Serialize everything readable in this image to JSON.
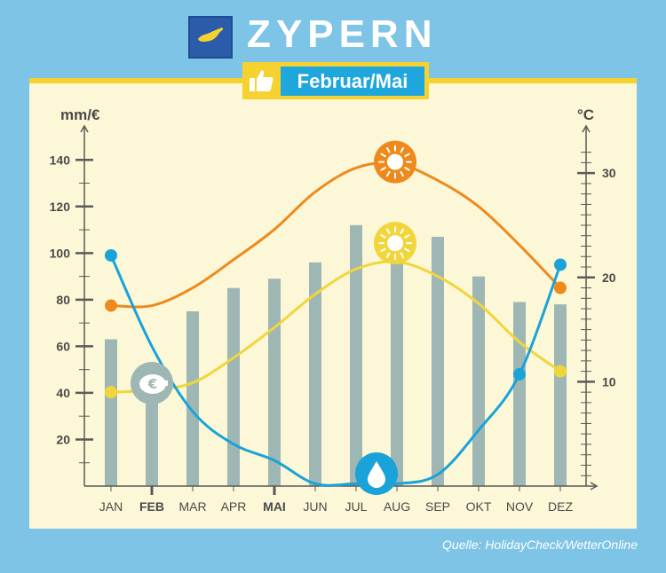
{
  "header": {
    "title": "ZYPERN",
    "best_months": "Februar/Mai",
    "colors": {
      "background": "#7ec4e6",
      "panel": "#fbf7d7",
      "accent": "#f5d230",
      "badge": "#1fa6dc"
    },
    "icons": [
      "cyprus-flag-icon",
      "thumbs-up-icon"
    ]
  },
  "source": "Quelle: HolidayCheck/WetterOnline",
  "chart_data": {
    "type": "bar",
    "categories": [
      "JAN",
      "FEB",
      "MAR",
      "APR",
      "MAI",
      "JUN",
      "JUL",
      "AUG",
      "SEP",
      "OKT",
      "NOV",
      "DEZ"
    ],
    "highlighted": [
      "FEB",
      "MAI"
    ],
    "left_axis": {
      "label": "mm/€",
      "ylim": [
        0,
        150
      ],
      "ticks": [
        20,
        40,
        60,
        80,
        100,
        120,
        140
      ]
    },
    "right_axis": {
      "label": "°C",
      "ylim": [
        0,
        33.5
      ],
      "ticks": [
        10,
        20,
        30
      ]
    },
    "bars": {
      "color": "#9fb7b4",
      "axis": "left",
      "values": [
        63,
        43,
        75,
        85,
        89,
        96,
        112,
        112,
        107,
        90,
        79,
        78
      ]
    },
    "series": [
      {
        "axis": "right",
        "color": "#ee8a1c",
        "icon": "sun-icon",
        "icon_at": "AUG",
        "values": [
          17.3,
          17.3,
          19.0,
          21.7,
          24.6,
          28.2,
          30.5,
          30.9,
          29.3,
          26.8,
          23.1,
          19.0
        ]
      },
      {
        "axis": "right",
        "color": "#f1d63b",
        "icon": "water-temperature-icon",
        "icon_at": "AUG",
        "values": [
          9.0,
          9.2,
          9.9,
          12.3,
          15.2,
          18.4,
          20.8,
          21.5,
          20.1,
          17.5,
          13.8,
          11.0
        ]
      },
      {
        "axis": "left",
        "color": "#1aa3d8",
        "icon": "water-drop-icon",
        "icon_at": "AUG",
        "values": [
          99,
          60,
          32,
          18,
          11,
          1,
          1,
          1,
          5,
          24,
          48,
          95
        ]
      }
    ],
    "extra_icons": [
      {
        "icon": "piggy-bank-euro-icon",
        "at": "FEB"
      }
    ]
  }
}
